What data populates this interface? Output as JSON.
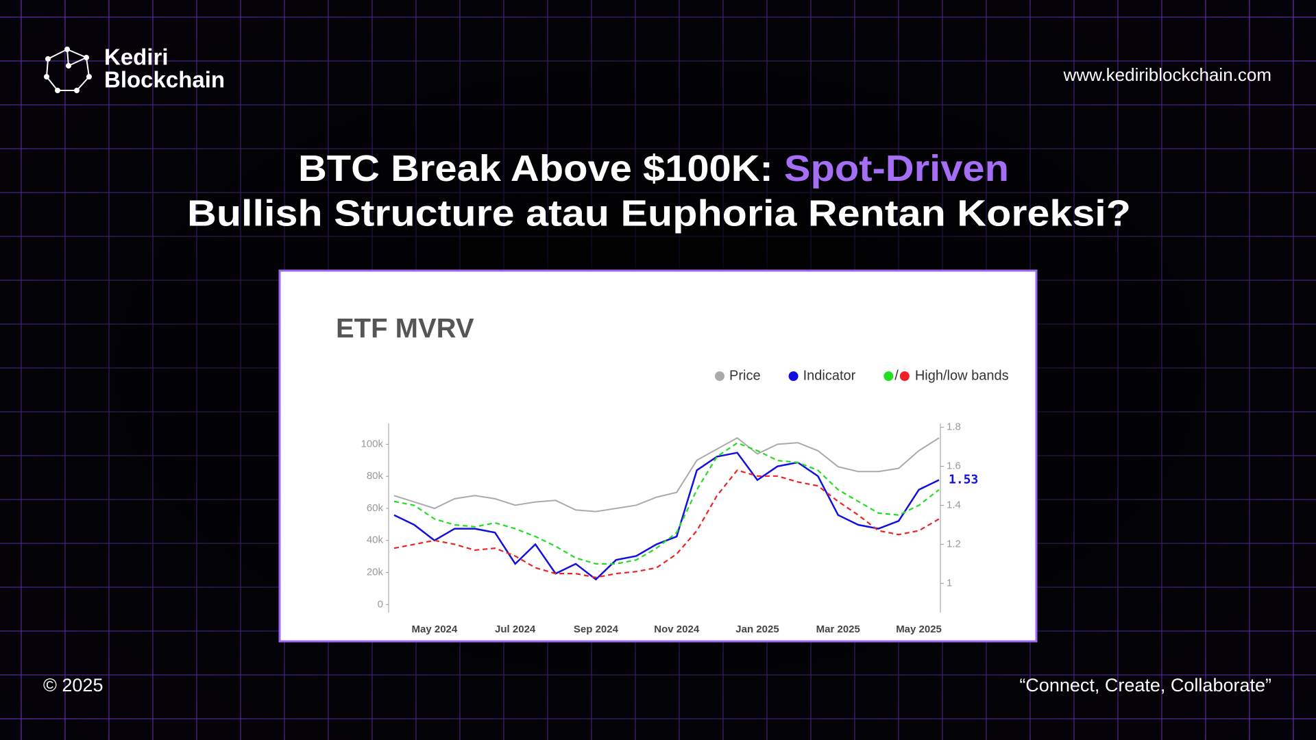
{
  "header": {
    "brand_line1": "Kediri",
    "brand_line2": "Blockchain",
    "url": "www.kediriblockchain.com"
  },
  "title": {
    "line1": "BTC Break Above $100K: ",
    "highlight": "Spot-Driven",
    "line2": "Bullish Structure atau Euphoria Rentan Koreksi?"
  },
  "footer": {
    "copyright": "© 2025",
    "tagline": "“Connect, Create, Collaborate”"
  },
  "chart_data": {
    "type": "line",
    "title": "ETF MVRV",
    "categories": [
      null,
      null,
      "May 2024",
      null,
      null,
      null,
      "Jul 2024",
      null,
      null,
      null,
      "Sep 2024",
      null,
      null,
      null,
      "Nov 2024",
      null,
      null,
      null,
      "Jan 2025",
      null,
      null,
      null,
      "Mar 2025",
      null,
      null,
      null,
      "May 2025",
      null
    ],
    "ylim": [
      -5000,
      113000
    ],
    "yticks": [
      0,
      {
        "value": 20000,
        "label": "20k"
      },
      {
        "value": 40000,
        "label": "40k"
      },
      {
        "value": 60000,
        "label": "60k"
      },
      {
        "value": 80000,
        "label": "80k"
      },
      {
        "value": 100000,
        "label": "100k"
      }
    ],
    "y2lim": [
      0.85,
      1.82
    ],
    "y2ticks": [
      1,
      1.2,
      1.4,
      1.6,
      1.8
    ],
    "series": [
      {
        "name": "Price",
        "color": "#aaaaaa",
        "values": [
          68000,
          64000,
          60000,
          66000,
          68000,
          66000,
          62000,
          64000,
          65000,
          59000,
          58000,
          60000,
          62000,
          67000,
          70000,
          90000,
          97000,
          104000,
          94000,
          100000,
          101000,
          96000,
          86000,
          83000,
          83000,
          85000,
          96000,
          104000
        ]
      },
      {
        "name": "Indicator",
        "color": "#1010e0",
        "axis": "y2",
        "values": [
          1.35,
          1.3,
          1.22,
          1.28,
          1.28,
          1.26,
          1.1,
          1.2,
          1.05,
          1.1,
          1.02,
          1.12,
          1.14,
          1.2,
          1.24,
          1.58,
          1.65,
          1.67,
          1.53,
          1.6,
          1.62,
          1.55,
          1.35,
          1.3,
          1.28,
          1.32,
          1.48,
          1.53
        ]
      }
    ],
    "bands": {
      "name": "High/low bands",
      "separator": "/",
      "high": {
        "color": "#22dd22",
        "axis": "y2",
        "values": [
          1.42,
          1.4,
          1.33,
          1.3,
          1.29,
          1.31,
          1.28,
          1.24,
          1.19,
          1.13,
          1.1,
          1.1,
          1.12,
          1.18,
          1.26,
          1.48,
          1.65,
          1.72,
          1.68,
          1.63,
          1.62,
          1.58,
          1.48,
          1.42,
          1.36,
          1.35,
          1.4,
          1.48
        ]
      },
      "low": {
        "color": "#ee2222",
        "axis": "y2",
        "values": [
          1.18,
          1.2,
          1.22,
          1.2,
          1.17,
          1.18,
          1.14,
          1.08,
          1.05,
          1.05,
          1.03,
          1.05,
          1.06,
          1.08,
          1.15,
          1.27,
          1.45,
          1.58,
          1.55,
          1.55,
          1.52,
          1.5,
          1.42,
          1.35,
          1.27,
          1.25,
          1.27,
          1.33
        ]
      }
    }
  }
}
